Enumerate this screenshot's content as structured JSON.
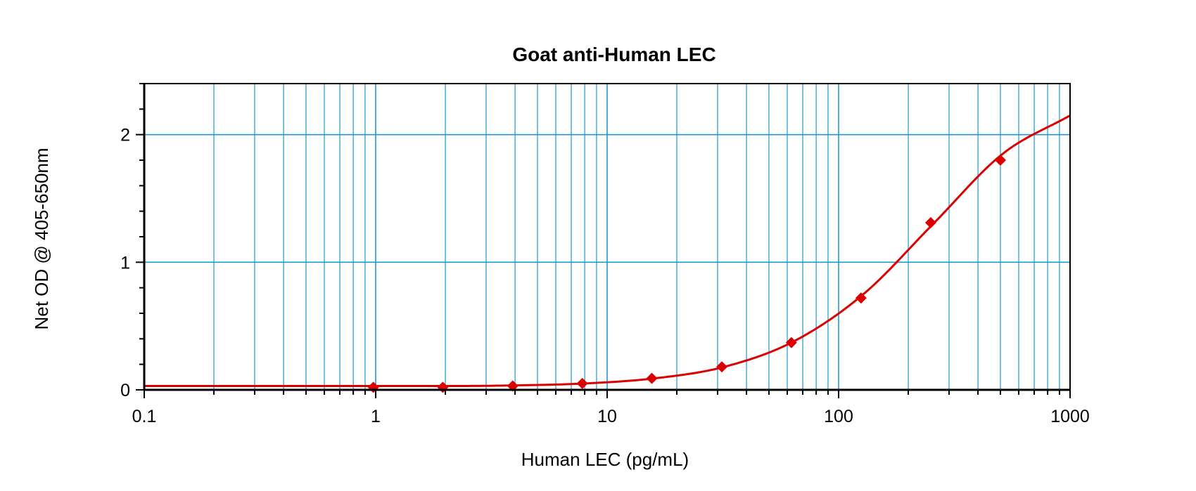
{
  "chart_data": {
    "type": "scatter",
    "title": "Goat anti-Human LEC",
    "xlabel": "Human LEC (pg/mL)",
    "ylabel": "Net OD @ 405-650nm",
    "x_scale": "log",
    "xlim": [
      0.1,
      1000
    ],
    "ylim": [
      0,
      2.4
    ],
    "x_ticks": [
      0.1,
      1,
      10,
      100,
      1000
    ],
    "x_tick_labels": [
      "0.1",
      "1",
      "10",
      "100",
      "1000"
    ],
    "y_ticks": [
      0,
      1,
      2
    ],
    "y_tick_labels": [
      "0",
      "1",
      "2"
    ],
    "grid": true,
    "legend": "none",
    "colors": {
      "series": "#dd0000",
      "grid": "#1a9ad6",
      "axes": "#000000"
    },
    "series": [
      {
        "marker": "diamond",
        "x": [
          0.977,
          1.95,
          3.91,
          7.81,
          15.6,
          31.3,
          62.5,
          125,
          250,
          500
        ],
        "y": [
          0.02,
          0.02,
          0.03,
          0.05,
          0.09,
          0.18,
          0.37,
          0.72,
          1.31,
          1.8
        ]
      }
    ],
    "fit_curve": {
      "x": [
        0.1,
        1,
        2,
        4,
        8,
        16,
        32,
        64,
        128,
        256,
        512,
        1000
      ],
      "y": [
        0.03,
        0.03,
        0.03,
        0.035,
        0.05,
        0.09,
        0.18,
        0.38,
        0.75,
        1.3,
        1.85,
        2.15
      ]
    }
  }
}
